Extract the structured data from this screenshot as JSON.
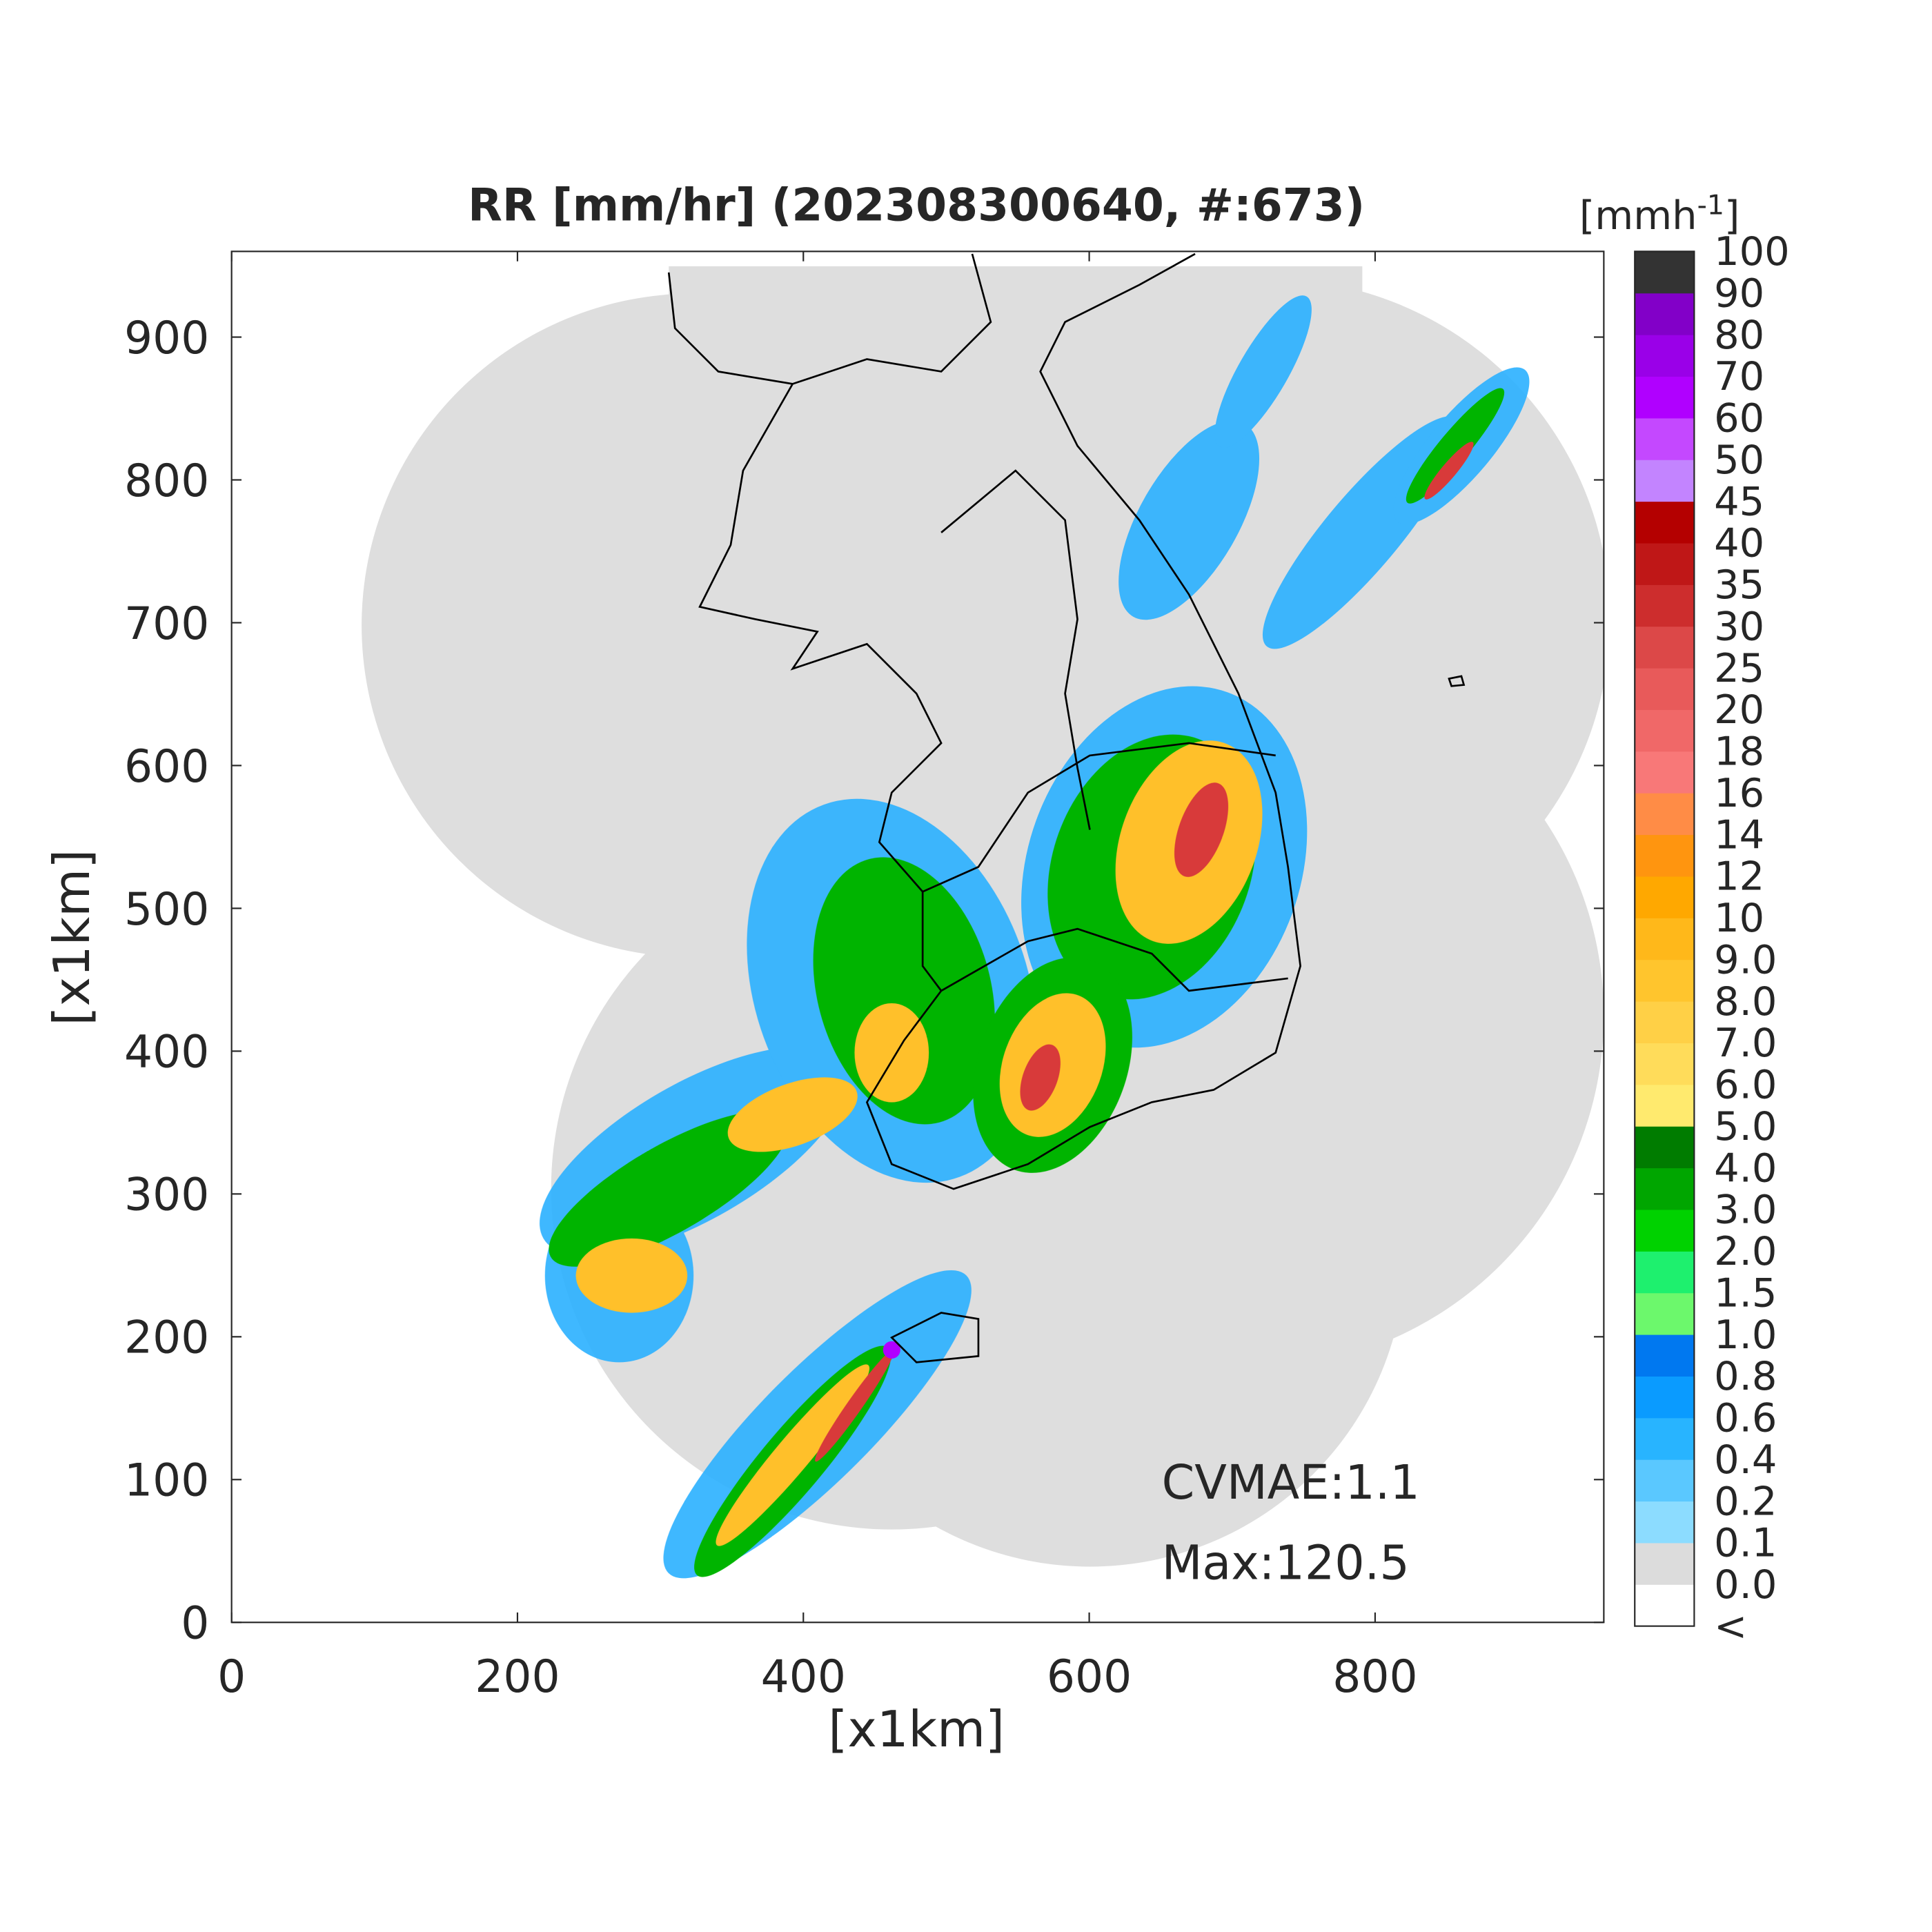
{
  "title": "RR [mm/hr] (202308300640, #:673)",
  "x_axis": {
    "label": "[x1km]",
    "lim": [
      0,
      960
    ],
    "ticks": [
      0,
      200,
      400,
      600,
      800
    ]
  },
  "y_axis": {
    "label": "[x1km]",
    "lim": [
      0,
      960
    ],
    "ticks": [
      0,
      100,
      200,
      300,
      400,
      500,
      600,
      700,
      800,
      900
    ]
  },
  "colorbar": {
    "unit": {
      "base": "[mmh",
      "exponent": "-1",
      "close": "]"
    },
    "labels": [
      "<",
      "0.0",
      "0.1",
      "0.2",
      "0.4",
      "0.6",
      "0.8",
      "1.0",
      "1.5",
      "2.0",
      "3.0",
      "4.0",
      "5.0",
      "6.0",
      "7.0",
      "8.0",
      "9.0",
      "10",
      "12",
      "14",
      "16",
      "18",
      "20",
      "25",
      "30",
      "35",
      "40",
      "45",
      "50",
      "60",
      "70",
      "80",
      "90",
      "100"
    ],
    "colors": [
      "#ffffff",
      "#dcdcdc",
      "#8cdcff",
      "#5ac8ff",
      "#28b4ff",
      "#0a9bff",
      "#0078f0",
      "#6cf86c",
      "#1ef06e",
      "#00d200",
      "#00a600",
      "#007c00",
      "#ffea6e",
      "#ffdc5a",
      "#ffd046",
      "#ffc52d",
      "#ffb81a",
      "#ffa800",
      "#ff950f",
      "#ff8c46",
      "#f87878",
      "#f06868",
      "#e85a5a",
      "#dc4848",
      "#cd2d2d",
      "#bf1717",
      "#b40000",
      "#c384ff",
      "#c448ff",
      "#b000ff",
      "#9a00e8",
      "#8200c8",
      "#333333"
    ]
  },
  "annotations": [
    "CVMAE:1.1",
    "Max:120.5"
  ]
}
